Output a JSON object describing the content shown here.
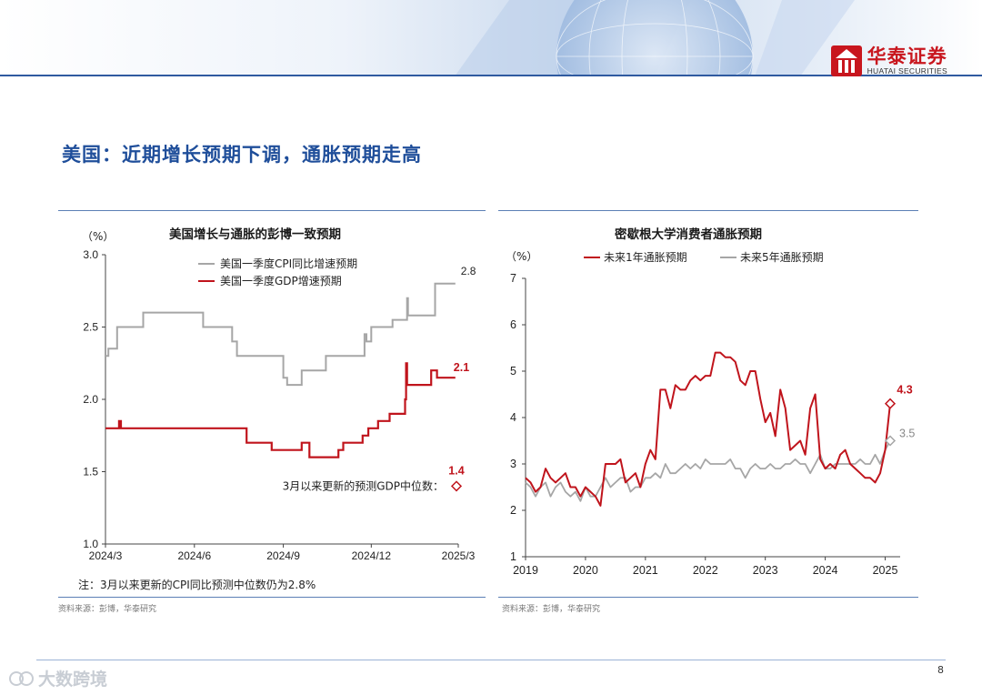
{
  "header": {
    "brand_name": "华泰证券",
    "brand_sub": "HUATAI SECURITIES"
  },
  "page_title": "美国：近期增长预期下调，通胀预期走高",
  "left_chart_note": "注：3月以来更新的CPI同比预测中位数仍为2.8%",
  "left_source": "资料来源：彭博，华泰研究",
  "right_source": "资料来源：彭博，华泰研究",
  "page_number": "8",
  "watermark": "大数跨境",
  "colors": {
    "red": "#c0141c",
    "gray": "#a6a6a6",
    "title_blue": "#1f4e9a"
  },
  "chart_data": [
    {
      "type": "line",
      "title": "美国增长与通胀的彭博一致预期",
      "unit_label": "（%）",
      "ylim": [
        1.0,
        3.0
      ],
      "y_ticks": [
        "1.0",
        "1.5",
        "2.0",
        "2.5",
        "3.0"
      ],
      "x_ticks": [
        "2024/3",
        "2024/6",
        "2024/9",
        "2024/12",
        "2025/3"
      ],
      "series": [
        {
          "name": "美国一季度CPI同比增速预期",
          "color": "#a6a6a6",
          "step": true,
          "points": [
            [
              "2024-03-01",
              2.3
            ],
            [
              "2024-03-04",
              2.35
            ],
            [
              "2024-03-13",
              2.5
            ],
            [
              "2024-04-09",
              2.6
            ],
            [
              "2024-06-10",
              2.5
            ],
            [
              "2024-07-10",
              2.4
            ],
            [
              "2024-07-15",
              2.3
            ],
            [
              "2024-08-15",
              2.3
            ],
            [
              "2024-09-01",
              2.15
            ],
            [
              "2024-09-05",
              2.1
            ],
            [
              "2024-09-20",
              2.2
            ],
            [
              "2024-10-15",
              2.3
            ],
            [
              "2024-11-10",
              2.3
            ],
            [
              "2024-11-24",
              2.45
            ],
            [
              "2024-11-26",
              2.4
            ],
            [
              "2024-12-01",
              2.5
            ],
            [
              "2024-12-23",
              2.55
            ],
            [
              "2025-01-05",
              2.55
            ],
            [
              "2025-01-07",
              2.7
            ],
            [
              "2025-01-08",
              2.58
            ],
            [
              "2025-02-05",
              2.8
            ],
            [
              "2025-02-26",
              2.8
            ]
          ]
        },
        {
          "name": "美国一季度GDP增速预期",
          "color": "#c0141c",
          "step": true,
          "points": [
            [
              "2024-03-01",
              1.8
            ],
            [
              "2024-03-15",
              1.85
            ],
            [
              "2024-03-17",
              1.8
            ],
            [
              "2024-07-25",
              1.7
            ],
            [
              "2024-08-20",
              1.65
            ],
            [
              "2024-09-20",
              1.7
            ],
            [
              "2024-09-28",
              1.6
            ],
            [
              "2024-10-28",
              1.65
            ],
            [
              "2024-11-02",
              1.7
            ],
            [
              "2024-11-22",
              1.75
            ],
            [
              "2024-11-28",
              1.8
            ],
            [
              "2024-12-08",
              1.85
            ],
            [
              "2024-12-20",
              1.9
            ],
            [
              "2025-01-05",
              2.0
            ],
            [
              "2025-01-06",
              2.25
            ],
            [
              "2025-01-07",
              2.1
            ],
            [
              "2025-01-25",
              2.1
            ],
            [
              "2025-02-01",
              2.2
            ],
            [
              "2025-02-07",
              2.15
            ],
            [
              "2025-02-26",
              2.15
            ]
          ]
        }
      ],
      "end_labels": [
        {
          "text": "2.8",
          "series": "美国一季度CPI同比增速预期"
        },
        {
          "text": "2.1",
          "series": "美国一季度GDP增速预期"
        }
      ],
      "annotation": {
        "text": "3月以来更新的预测GDP中位数：",
        "value": 1.4,
        "value_label": "1.4",
        "date": "2025-03-01"
      }
    },
    {
      "type": "line",
      "title": "密歇根大学消费者通胀预期",
      "unit_label": "（%）",
      "ylim": [
        1,
        7
      ],
      "y_ticks": [
        "1",
        "2",
        "3",
        "4",
        "5",
        "6",
        "7"
      ],
      "x_ticks": [
        "2019",
        "2020",
        "2021",
        "2022",
        "2023",
        "2024",
        "2025"
      ],
      "series": [
        {
          "name": "未来1年通胀预期",
          "color": "#c0141c",
          "start": "2019-01",
          "values": [
            2.7,
            2.6,
            2.4,
            2.5,
            2.9,
            2.7,
            2.6,
            2.7,
            2.8,
            2.5,
            2.5,
            2.3,
            2.5,
            2.4,
            2.3,
            2.1,
            3.0,
            3.0,
            3.0,
            3.1,
            2.6,
            2.7,
            2.8,
            2.5,
            3.0,
            3.3,
            3.1,
            4.6,
            4.6,
            4.2,
            4.7,
            4.6,
            4.6,
            4.8,
            4.9,
            4.8,
            4.9,
            4.9,
            5.4,
            5.4,
            5.3,
            5.3,
            5.2,
            4.8,
            4.7,
            5.0,
            5.0,
            4.4,
            3.9,
            4.1,
            3.6,
            4.6,
            4.2,
            3.3,
            3.4,
            3.5,
            3.2,
            4.2,
            4.5,
            3.1,
            2.9,
            3.0,
            2.9,
            3.2,
            3.3,
            3.0,
            2.9,
            2.8,
            2.7,
            2.7,
            2.6,
            2.8,
            3.3,
            4.3
          ]
        },
        {
          "name": "未来5年通胀预期",
          "color": "#a6a6a6",
          "start": "2019-01",
          "values": [
            2.6,
            2.5,
            2.3,
            2.5,
            2.6,
            2.3,
            2.5,
            2.6,
            2.4,
            2.3,
            2.4,
            2.2,
            2.5,
            2.3,
            2.3,
            2.5,
            2.7,
            2.5,
            2.6,
            2.7,
            2.7,
            2.4,
            2.5,
            2.5,
            2.7,
            2.7,
            2.8,
            2.7,
            3.0,
            2.8,
            2.8,
            2.9,
            3.0,
            2.9,
            3.0,
            2.9,
            3.1,
            3.0,
            3.0,
            3.0,
            3.0,
            3.1,
            2.9,
            2.9,
            2.7,
            2.9,
            3.0,
            2.9,
            2.9,
            3.0,
            2.9,
            2.9,
            3.0,
            3.0,
            3.1,
            3.0,
            3.0,
            2.8,
            3.0,
            3.2,
            2.9,
            2.9,
            3.0,
            3.0,
            3.0,
            3.0,
            3.0,
            3.1,
            3.0,
            3.0,
            3.2,
            3.0,
            3.3,
            3.5
          ]
        }
      ],
      "end_labels": [
        {
          "text": "4.3",
          "series": "未来1年通胀预期"
        },
        {
          "text": "3.5",
          "series": "未来5年通胀预期"
        }
      ]
    }
  ]
}
